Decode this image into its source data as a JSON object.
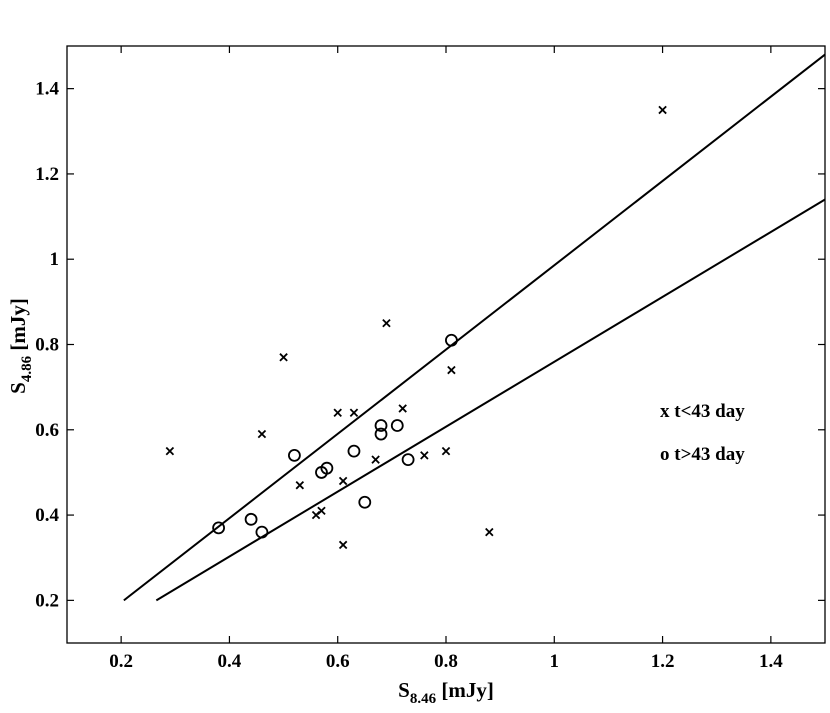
{
  "chart_data": {
    "type": "scatter",
    "title": "",
    "xlabel": {
      "main": "S",
      "sub": "8.46",
      "unit": " [mJy]"
    },
    "ylabel": {
      "main": "S",
      "sub": "4.86",
      "unit": " [mJy]"
    },
    "xlim": [
      0.1,
      1.5
    ],
    "ylim": [
      0.1,
      1.5
    ],
    "x_ticks": [
      0.2,
      0.4,
      0.6,
      0.8,
      1,
      1.2,
      1.4
    ],
    "x_tick_labels": [
      "0.2",
      "0.4",
      "0.6",
      "0.8",
      "1",
      "1.2",
      "1.4"
    ],
    "y_ticks": [
      0.2,
      0.4,
      0.6,
      0.8,
      1,
      1.2,
      1.4
    ],
    "y_tick_labels": [
      "0.2",
      "0.4",
      "0.6",
      "0.8",
      "1",
      "1.2",
      "1.4"
    ],
    "grid": false,
    "legend_position": "right",
    "series": [
      {
        "name": "x t<43 day",
        "marker": "x",
        "color": "#000000",
        "points": [
          [
            0.29,
            0.55
          ],
          [
            0.46,
            0.59
          ],
          [
            0.5,
            0.77
          ],
          [
            0.53,
            0.47
          ],
          [
            0.56,
            0.4
          ],
          [
            0.57,
            0.41
          ],
          [
            0.6,
            0.64
          ],
          [
            0.61,
            0.48
          ],
          [
            0.61,
            0.33
          ],
          [
            0.63,
            0.64
          ],
          [
            0.67,
            0.53
          ],
          [
            0.69,
            0.85
          ],
          [
            0.72,
            0.65
          ],
          [
            0.76,
            0.54
          ],
          [
            0.8,
            0.55
          ],
          [
            0.81,
            0.74
          ],
          [
            0.88,
            0.36
          ],
          [
            1.2,
            1.35
          ]
        ]
      },
      {
        "name": "o t>43 day",
        "marker": "o",
        "color": "#000000",
        "points": [
          [
            0.38,
            0.37
          ],
          [
            0.44,
            0.39
          ],
          [
            0.46,
            0.36
          ],
          [
            0.52,
            0.54
          ],
          [
            0.57,
            0.5
          ],
          [
            0.58,
            0.51
          ],
          [
            0.63,
            0.55
          ],
          [
            0.65,
            0.43
          ],
          [
            0.68,
            0.61
          ],
          [
            0.68,
            0.59
          ],
          [
            0.71,
            0.61
          ],
          [
            0.73,
            0.53
          ],
          [
            0.81,
            0.81
          ]
        ]
      }
    ],
    "lines": [
      {
        "x": [
          0.205,
          1.5
        ],
        "y": [
          0.2,
          1.48
        ]
      },
      {
        "x": [
          0.265,
          1.5
        ],
        "y": [
          0.2,
          1.14
        ]
      }
    ]
  }
}
